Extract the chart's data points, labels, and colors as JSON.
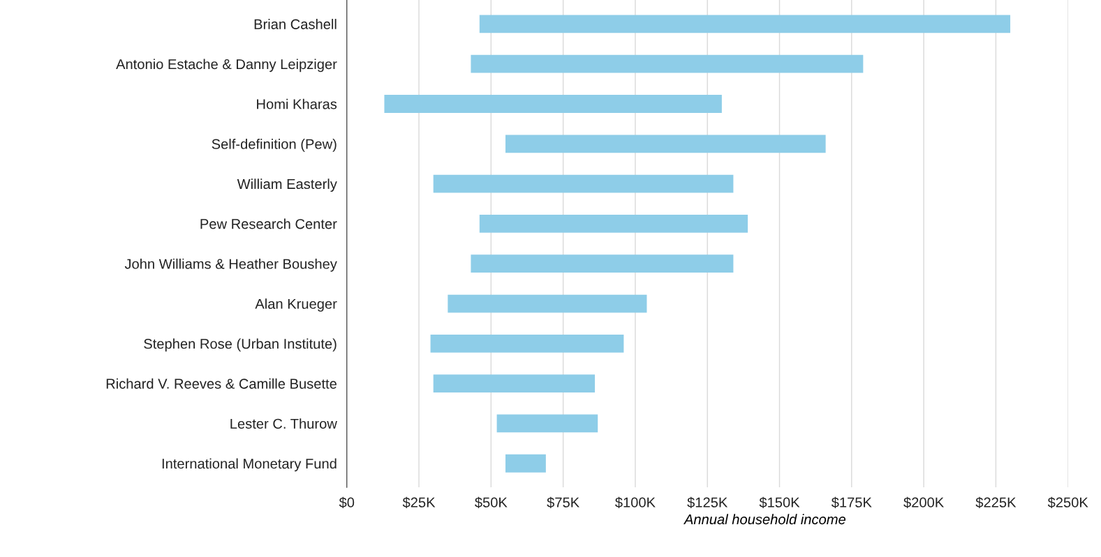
{
  "chart_data": {
    "type": "bar",
    "orientation": "horizontal",
    "xlabel": "Annual household income",
    "categories": [
      "Brian Cashell",
      "Antonio Estache & Danny Leipziger",
      "Homi Kharas",
      "Self-definition (Pew)",
      "William Easterly",
      "Pew Research Center",
      "John Williams & Heather Boushey",
      "Alan Krueger",
      "Stephen Rose (Urban Institute)",
      "Richard V. Reeves & Camille Busette",
      "Lester C. Thurow",
      "International Monetary Fund"
    ],
    "base": [
      46000,
      43000,
      13000,
      55000,
      30000,
      46000,
      43000,
      35000,
      29000,
      30000,
      52000,
      55000
    ],
    "values": [
      184000,
      136000,
      117000,
      111000,
      104000,
      93000,
      91000,
      69000,
      67000,
      56000,
      35000,
      14000
    ],
    "color": "#8ecde8",
    "xlim": [
      0,
      250000
    ],
    "xticks": [
      {
        "value": 0,
        "label": "$0"
      },
      {
        "value": 25000,
        "label": "$25K"
      },
      {
        "value": 50000,
        "label": "$50K"
      },
      {
        "value": 75000,
        "label": "$75K"
      },
      {
        "value": 100000,
        "label": "$100K"
      },
      {
        "value": 125000,
        "label": "$125K"
      },
      {
        "value": 150000,
        "label": "$150K"
      },
      {
        "value": 175000,
        "label": "$175K"
      },
      {
        "value": 200000,
        "label": "$200K"
      },
      {
        "value": 225000,
        "label": "$225K"
      },
      {
        "value": 250000,
        "label": "$250K"
      }
    ],
    "grid": "x",
    "legend": false
  }
}
